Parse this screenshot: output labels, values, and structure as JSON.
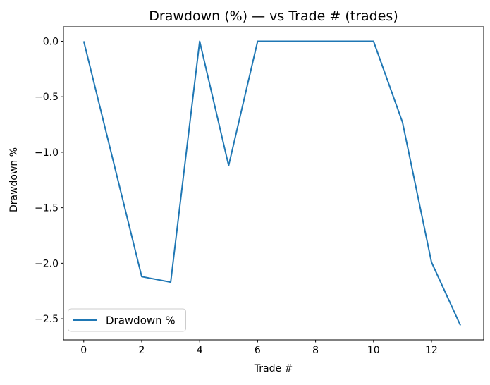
{
  "figure": {
    "background": "#ffffff"
  },
  "chart_data": {
    "type": "line",
    "title": "Drawdown (%) — vs Trade # (trades)",
    "xlabel": "Trade #",
    "ylabel": "Drawdown %",
    "grid": false,
    "legend": {
      "position": "lower left",
      "entries": [
        "Drawdown %"
      ]
    },
    "series": [
      {
        "name": "Drawdown %",
        "color": "#1f77b4",
        "x": [
          0,
          1,
          2,
          3,
          4,
          5,
          6,
          7,
          8,
          9,
          10,
          11,
          12,
          13
        ],
        "y": [
          0.0,
          -1.06,
          -2.12,
          -2.17,
          0.0,
          -1.12,
          0.0,
          0.0,
          0.0,
          0.0,
          0.0,
          -0.73,
          -1.99,
          -2.56
        ]
      }
    ],
    "xlim": [
      -0.7,
      13.8
    ],
    "ylim": [
      -2.69,
      0.13
    ],
    "xticks": {
      "values": [
        0,
        2,
        4,
        6,
        8,
        10,
        12
      ],
      "labels": [
        "0",
        "2",
        "4",
        "6",
        "8",
        "10",
        "12"
      ]
    },
    "yticks": {
      "values": [
        0.0,
        -0.5,
        -1.0,
        -1.5,
        -2.0,
        -2.5
      ],
      "labels": [
        "0.0",
        "−0.5",
        "−1.0",
        "−1.5",
        "−2.0",
        "−2.5"
      ]
    },
    "axis_color": "#000000",
    "text_color": "#000000"
  }
}
